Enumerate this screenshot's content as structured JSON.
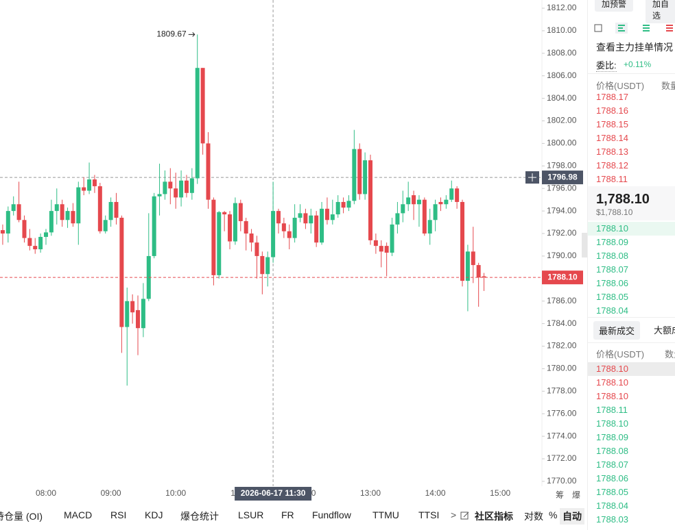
{
  "chart_data": {
    "type": "candlestick",
    "x": [
      "07:20",
      "07:25",
      "07:30",
      "07:35",
      "07:40",
      "07:45",
      "07:50",
      "07:55",
      "08:00",
      "08:05",
      "08:10",
      "08:15",
      "08:20",
      "08:25",
      "08:30",
      "08:35",
      "08:40",
      "08:45",
      "08:50",
      "08:55",
      "09:00",
      "09:05",
      "09:10",
      "09:15",
      "09:20",
      "09:25",
      "09:30",
      "09:35",
      "09:40",
      "09:45",
      "09:50",
      "09:55",
      "10:00",
      "10:05",
      "10:10",
      "10:15",
      "10:20",
      "10:25",
      "10:30",
      "10:35",
      "10:40",
      "10:45",
      "10:50",
      "10:55",
      "11:00",
      "11:05",
      "11:10",
      "11:15",
      "11:20",
      "11:25",
      "11:30",
      "11:35",
      "11:40",
      "11:45",
      "11:50",
      "11:55",
      "12:00",
      "12:05",
      "12:10",
      "12:15",
      "12:20",
      "12:25",
      "12:30",
      "12:35",
      "12:40",
      "12:45",
      "12:50",
      "12:55",
      "13:00",
      "13:05",
      "13:10",
      "13:15",
      "13:20",
      "13:25",
      "13:30",
      "13:35",
      "13:40",
      "13:45",
      "13:50",
      "13:55",
      "14:00",
      "14:05",
      "14:10",
      "14:15",
      "14:20",
      "14:25",
      "14:30",
      "14:35",
      "14:40",
      "14:45"
    ],
    "open": [
      1792.3,
      1792.0,
      1794.0,
      1794.6,
      1793.2,
      1791.6,
      1790.9,
      1790.6,
      1791.7,
      1792.1,
      1794.0,
      1794.6,
      1793.2,
      1794.0,
      1792.9,
      1796.1,
      1795.8,
      1796.8,
      1796.2,
      1792.2,
      1793.2,
      1794.8,
      1793.4,
      1783.7,
      1786.0,
      1785.2,
      1783.6,
      1786.2,
      1790.0,
      1795.3,
      1795.5,
      1796.6,
      1796.0,
      1795.2,
      1796.7,
      1795.6,
      1796.9,
      1806.7,
      1800.0,
      1795.0,
      1788.3,
      1793.9,
      1793.7,
      1791.3,
      1794.7,
      1793.1,
      1792.0,
      1791.2,
      1790.0,
      1788.4,
      1789.9,
      1794.0,
      1792.9,
      1792.2,
      1791.6,
      1793.4,
      1793.8,
      1792.9,
      1793.6,
      1791.2,
      1794.2,
      1793.2,
      1793.7,
      1794.8,
      1794.3,
      1794.9,
      1799.5,
      1795.5,
      1798.5,
      1791.4,
      1790.9,
      1790.9,
      1790.3,
      1792.8,
      1793.8,
      1794.6,
      1795.4,
      1794.6,
      1795.0,
      1792.0,
      1793.2,
      1794.8,
      1794.6,
      1795.0,
      1796.0,
      1794.8,
      1787.8,
      1790.4,
      1789.2,
      1788.2
    ],
    "high": [
      1792.8,
      1794.4,
      1795.3,
      1796.6,
      1793.6,
      1792.4,
      1791.6,
      1792.0,
      1792.4,
      1795.0,
      1796.0,
      1795.0,
      1794.3,
      1794.7,
      1796.6,
      1797.0,
      1798.3,
      1797.2,
      1796.5,
      1793.6,
      1795.2,
      1795.6,
      1793.6,
      1787.2,
      1786.6,
      1786.5,
      1787.6,
      1793.8,
      1795.6,
      1798.2,
      1797.6,
      1797.8,
      1797.4,
      1797.6,
      1797.2,
      1797.8,
      1809.67,
      1806.7,
      1801.0,
      1795.2,
      1794.0,
      1794.0,
      1794.0,
      1795.2,
      1795.0,
      1793.4,
      1792.4,
      1791.8,
      1790.4,
      1790.4,
      1796.6,
      1794.2,
      1793.4,
      1792.8,
      1794.6,
      1794.6,
      1794.2,
      1794.2,
      1794.0,
      1794.8,
      1795.2,
      1795.0,
      1795.4,
      1795.2,
      1795.4,
      1801.2,
      1800.0,
      1799.2,
      1799.0,
      1792.0,
      1791.4,
      1791.2,
      1793.4,
      1794.8,
      1795.8,
      1796.6,
      1795.8,
      1795.4,
      1795.2,
      1794.2,
      1795.0,
      1795.2,
      1795.4,
      1796.7,
      1796.2,
      1795.0,
      1791.0,
      1792.6,
      1789.4,
      1788.5
    ],
    "low": [
      1791.0,
      1791.2,
      1793.6,
      1793.0,
      1791.2,
      1790.5,
      1790.2,
      1790.3,
      1791.0,
      1791.8,
      1792.8,
      1792.6,
      1792.5,
      1792.6,
      1791.0,
      1795.4,
      1795.5,
      1795.6,
      1792.0,
      1792.0,
      1792.6,
      1792.8,
      1781.4,
      1778.5,
      1784.0,
      1781.2,
      1782.8,
      1786.0,
      1789.8,
      1793.6,
      1795.0,
      1794.6,
      1794.2,
      1794.4,
      1795.2,
      1795.0,
      1796.4,
      1799.0,
      1794.2,
      1787.4,
      1788.0,
      1792.2,
      1790.6,
      1791.0,
      1792.2,
      1790.5,
      1790.4,
      1788.0,
      1786.6,
      1787.3,
      1789.4,
      1792.0,
      1791.6,
      1790.6,
      1791.2,
      1793.0,
      1792.4,
      1792.0,
      1790.8,
      1791.0,
      1792.8,
      1792.8,
      1793.4,
      1793.8,
      1794.0,
      1794.6,
      1795.0,
      1795.0,
      1791.0,
      1790.2,
      1789.0,
      1788.2,
      1790.0,
      1792.0,
      1793.0,
      1794.0,
      1793.2,
      1792.6,
      1791.8,
      1791.0,
      1792.2,
      1794.0,
      1794.2,
      1794.8,
      1794.2,
      1787.3,
      1785.1,
      1787.6,
      1785.5,
      1786.9
    ],
    "close": [
      1792.0,
      1794.0,
      1794.6,
      1793.2,
      1791.6,
      1790.9,
      1790.6,
      1791.7,
      1792.1,
      1794.0,
      1794.6,
      1793.2,
      1794.0,
      1792.9,
      1796.1,
      1795.8,
      1796.8,
      1796.2,
      1792.2,
      1793.2,
      1794.8,
      1793.4,
      1783.7,
      1786.0,
      1785.0,
      1783.6,
      1786.2,
      1790.0,
      1795.3,
      1795.5,
      1796.6,
      1796.0,
      1795.2,
      1796.7,
      1795.6,
      1796.9,
      1806.7,
      1800.0,
      1795.0,
      1788.3,
      1793.9,
      1793.7,
      1791.3,
      1794.7,
      1793.1,
      1792.0,
      1791.2,
      1790.0,
      1788.4,
      1789.9,
      1794.0,
      1792.9,
      1792.2,
      1791.6,
      1793.4,
      1793.8,
      1792.9,
      1793.6,
      1791.2,
      1794.2,
      1793.2,
      1793.7,
      1794.8,
      1794.3,
      1794.9,
      1799.5,
      1795.5,
      1798.5,
      1791.4,
      1790.9,
      1790.4,
      1790.3,
      1792.8,
      1793.8,
      1794.6,
      1795.2,
      1794.6,
      1795.0,
      1792.0,
      1793.2,
      1794.6,
      1794.6,
      1795.0,
      1796.0,
      1794.8,
      1787.8,
      1790.4,
      1789.2,
      1788.1,
      1788.1
    ],
    "up_color": "#2ebd85",
    "down_color": "#e5484d",
    "ylim": [
      1769.57,
      1812.73
    ],
    "yticks": [
      {
        "value": 1770,
        "label": "1770.00"
      },
      {
        "value": 1772,
        "label": "1772.00"
      },
      {
        "value": 1774,
        "label": "1774.00"
      },
      {
        "value": 1776,
        "label": "1776.00"
      },
      {
        "value": 1778,
        "label": "1778.00"
      },
      {
        "value": 1780,
        "label": "1780.00"
      },
      {
        "value": 1782,
        "label": "1782.00"
      },
      {
        "value": 1784,
        "label": "1784.00"
      },
      {
        "value": 1786,
        "label": "1786.00"
      },
      {
        "value": 1788,
        "label": "1788.00"
      },
      {
        "value": 1790,
        "label": "1790.00"
      },
      {
        "value": 1792,
        "label": "1792.00"
      },
      {
        "value": 1794,
        "label": "1794.00"
      },
      {
        "value": 1796,
        "label": "1796.00"
      },
      {
        "value": 1798,
        "label": "1798.00"
      },
      {
        "value": 1800,
        "label": "1800.00"
      },
      {
        "value": 1802,
        "label": "1802.00"
      },
      {
        "value": 1804,
        "label": "1804.00"
      },
      {
        "value": 1806,
        "label": "1806.00"
      },
      {
        "value": 1808,
        "label": "1808.00"
      },
      {
        "value": 1810,
        "label": "1810.00"
      },
      {
        "value": 1812,
        "label": "1812.00"
      }
    ],
    "xticks": [
      "08:00",
      "09:00",
      "10:00",
      "11:00",
      "12:00",
      "13:00",
      "14:00",
      "15:00"
    ],
    "last_price": {
      "value": 1788.1,
      "label": "1788.10"
    },
    "crosshair_price": {
      "value": 1796.98,
      "label": "1796.98"
    },
    "crosshair_time": "2026-06-17 11:30",
    "side_tools": [
      "筹",
      "爆"
    ]
  },
  "header": {
    "alert_button": "加预警",
    "watch_button": "加自选"
  },
  "order_book": {
    "big_orders_link": "查看主力挂单情况",
    "ratio_label": "委比:",
    "ratio_value": "+0.11%",
    "price_header": "价格(USDT)",
    "amount_header": "数量",
    "asks": [
      "1788.17",
      "1788.16",
      "1788.15",
      "1788.14",
      "1788.13",
      "1788.12",
      "1788.11"
    ],
    "last_price": "1,788.10",
    "last_price_usd": "$1,788.10",
    "bids": [
      "1788.10",
      "1788.09",
      "1788.08",
      "1788.07",
      "1788.06",
      "1788.05",
      "1788.04"
    ]
  },
  "trades": {
    "tab_latest": "最新成交",
    "tab_large": "大额成交",
    "price_header": "价格(USDT)",
    "amount_header": "数量",
    "rows": [
      {
        "price": "1788.10",
        "side": "sell"
      },
      {
        "price": "1788.10",
        "side": "sell"
      },
      {
        "price": "1788.10",
        "side": "sell"
      },
      {
        "price": "1788.11",
        "side": "buy"
      },
      {
        "price": "1788.10",
        "side": "buy"
      },
      {
        "price": "1788.09",
        "side": "buy"
      },
      {
        "price": "1788.08",
        "side": "buy"
      },
      {
        "price": "1788.07",
        "side": "buy"
      },
      {
        "price": "1788.06",
        "side": "buy"
      },
      {
        "price": "1788.05",
        "side": "buy"
      },
      {
        "price": "1788.04",
        "side": "buy"
      },
      {
        "price": "1788.03",
        "side": "buy"
      }
    ]
  },
  "indicator_bar": {
    "items": [
      "持仓量 (OI)",
      "MACD",
      "RSI",
      "KDJ",
      "爆仓统计",
      "LSUR",
      "FR",
      "Fundflow",
      "TTMU",
      "TTSI"
    ],
    "more": ">",
    "community": "社区指标",
    "log": "对数",
    "percent": "%",
    "auto": "自动"
  }
}
